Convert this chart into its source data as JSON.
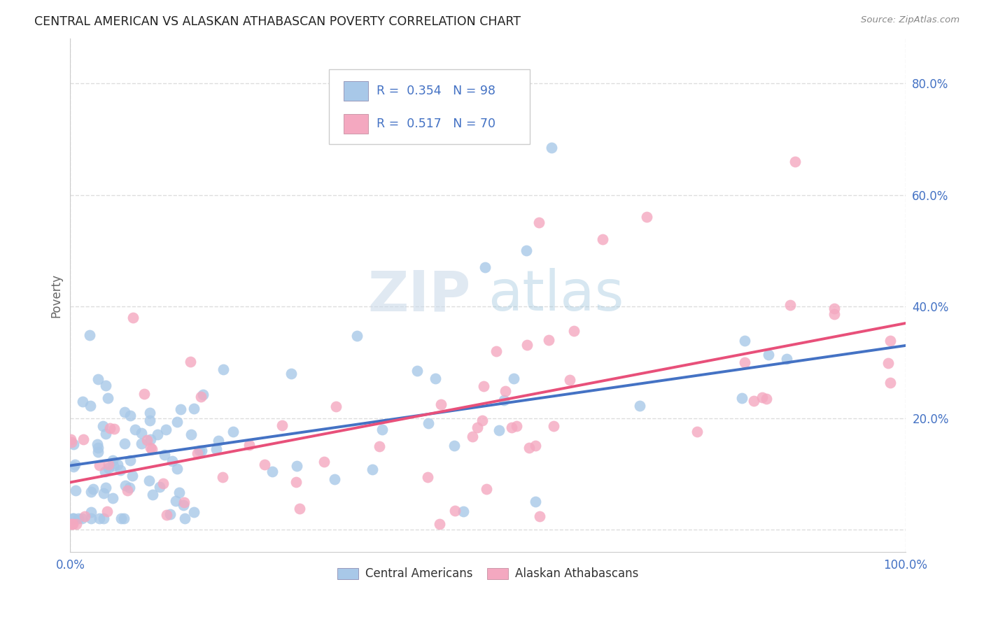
{
  "title": "CENTRAL AMERICAN VS ALASKAN ATHABASCAN POVERTY CORRELATION CHART",
  "source": "Source: ZipAtlas.com",
  "ylabel": "Poverty",
  "ytick_values": [
    0.0,
    0.2,
    0.4,
    0.6,
    0.8
  ],
  "ytick_labels": [
    "",
    "20.0%",
    "40.0%",
    "60.0%",
    "80.0%"
  ],
  "xtick_values": [
    0.0,
    1.0
  ],
  "xtick_labels": [
    "0.0%",
    "100.0%"
  ],
  "xrange": [
    0.0,
    1.0
  ],
  "yrange": [
    -0.04,
    0.88
  ],
  "blue_R": 0.354,
  "blue_N": 98,
  "pink_R": 0.517,
  "pink_N": 70,
  "blue_color": "#a8c8e8",
  "pink_color": "#f4a8c0",
  "blue_line_color": "#4472c4",
  "pink_line_color": "#e8507a",
  "legend_label_blue": "Central Americans",
  "legend_label_pink": "Alaskan Athabascans",
  "watermark_zip": "ZIP",
  "watermark_atlas": "atlas",
  "background_color": "#ffffff",
  "grid_color": "#dddddd",
  "title_color": "#222222",
  "source_color": "#888888",
  "tick_color": "#4472c4",
  "ylabel_color": "#666666",
  "blue_line_intercept": 0.115,
  "blue_line_slope": 0.215,
  "pink_line_intercept": 0.085,
  "pink_line_slope": 0.285
}
